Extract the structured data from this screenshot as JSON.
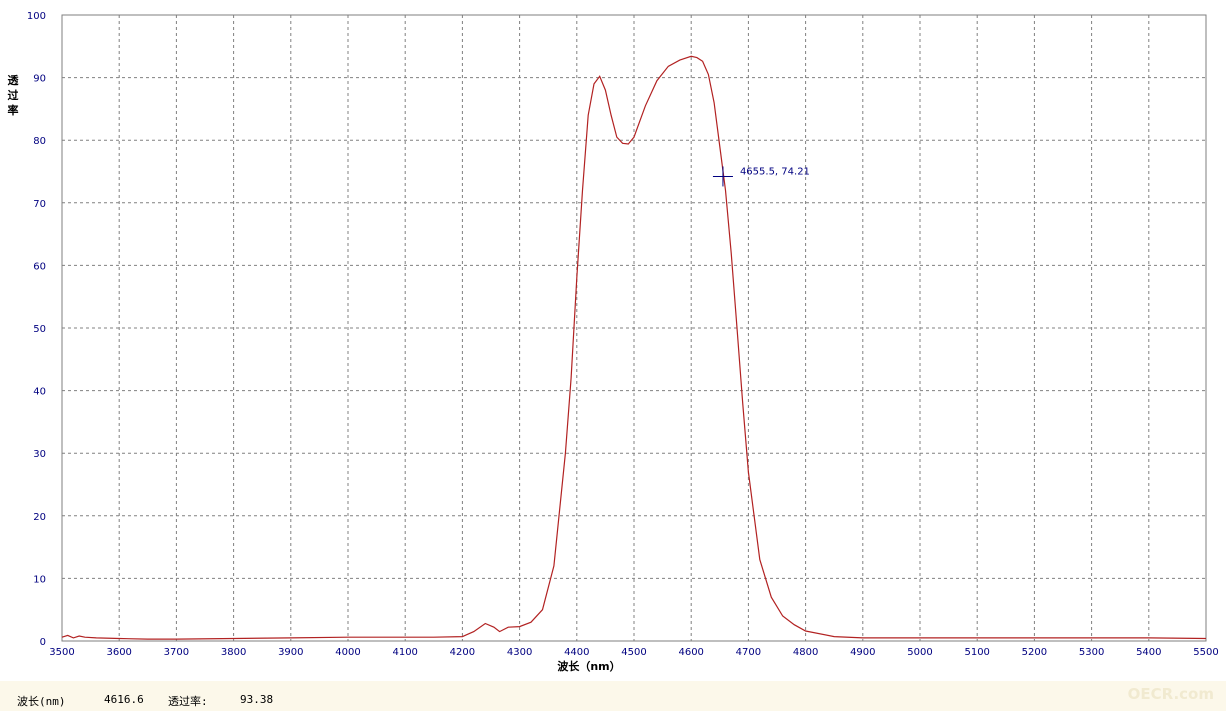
{
  "chart_data": {
    "type": "line",
    "title": "",
    "xlabel": "波长（nm）",
    "ylabel": "透过率",
    "xlim": [
      3500,
      5500
    ],
    "ylim": [
      0,
      100
    ],
    "x_ticks": [
      3500,
      3600,
      3700,
      3800,
      3900,
      4000,
      4100,
      4200,
      4300,
      4400,
      4500,
      4600,
      4700,
      4800,
      4900,
      5000,
      5100,
      5200,
      5300,
      5400,
      5500
    ],
    "y_ticks": [
      0,
      10,
      20,
      30,
      40,
      50,
      60,
      70,
      80,
      90,
      100
    ],
    "grid": true,
    "line_color": "#b22222",
    "series": [
      {
        "x": [
          3500,
          3510,
          3520,
          3530,
          3540,
          3560,
          3600,
          3650,
          3700,
          3800,
          3900,
          4000,
          4100,
          4150,
          4200,
          4220,
          4240,
          4255,
          4265,
          4280,
          4300,
          4320,
          4340,
          4360,
          4380,
          4390,
          4400,
          4410,
          4420,
          4430,
          4440,
          4450,
          4460,
          4470,
          4480,
          4490,
          4500,
          4510,
          4520,
          4540,
          4560,
          4580,
          4600,
          4610,
          4620,
          4630,
          4640,
          4650,
          4660,
          4670,
          4680,
          4690,
          4700,
          4720,
          4740,
          4760,
          4780,
          4800,
          4850,
          4900,
          5000,
          5100,
          5200,
          5300,
          5400,
          5500
        ],
        "y": [
          0.6,
          0.9,
          0.5,
          0.8,
          0.6,
          0.5,
          0.4,
          0.3,
          0.3,
          0.4,
          0.5,
          0.6,
          0.6,
          0.6,
          0.7,
          1.5,
          2.8,
          2.2,
          1.5,
          2.2,
          2.3,
          3.0,
          5.0,
          12.0,
          30.0,
          42.0,
          58.0,
          72.0,
          84.0,
          89.0,
          90.2,
          88.0,
          84.0,
          80.5,
          79.5,
          79.4,
          80.5,
          83.0,
          85.5,
          89.5,
          91.8,
          92.8,
          93.4,
          93.2,
          92.6,
          90.5,
          86.0,
          79.0,
          72.0,
          62.0,
          50.0,
          38.0,
          27.0,
          13.0,
          7.0,
          4.0,
          2.6,
          1.6,
          0.7,
          0.5,
          0.5,
          0.5,
          0.5,
          0.5,
          0.5,
          0.4
        ]
      }
    ],
    "cursor": {
      "x": 4655.5,
      "y": 74.21,
      "label": "4655.5,  74.21"
    }
  },
  "status": {
    "wavelength_label": "波长(nm)",
    "wavelength_value": "4616.6",
    "transmittance_label": "透过率:",
    "transmittance_value": "93.38"
  },
  "watermark": "OECR.com"
}
